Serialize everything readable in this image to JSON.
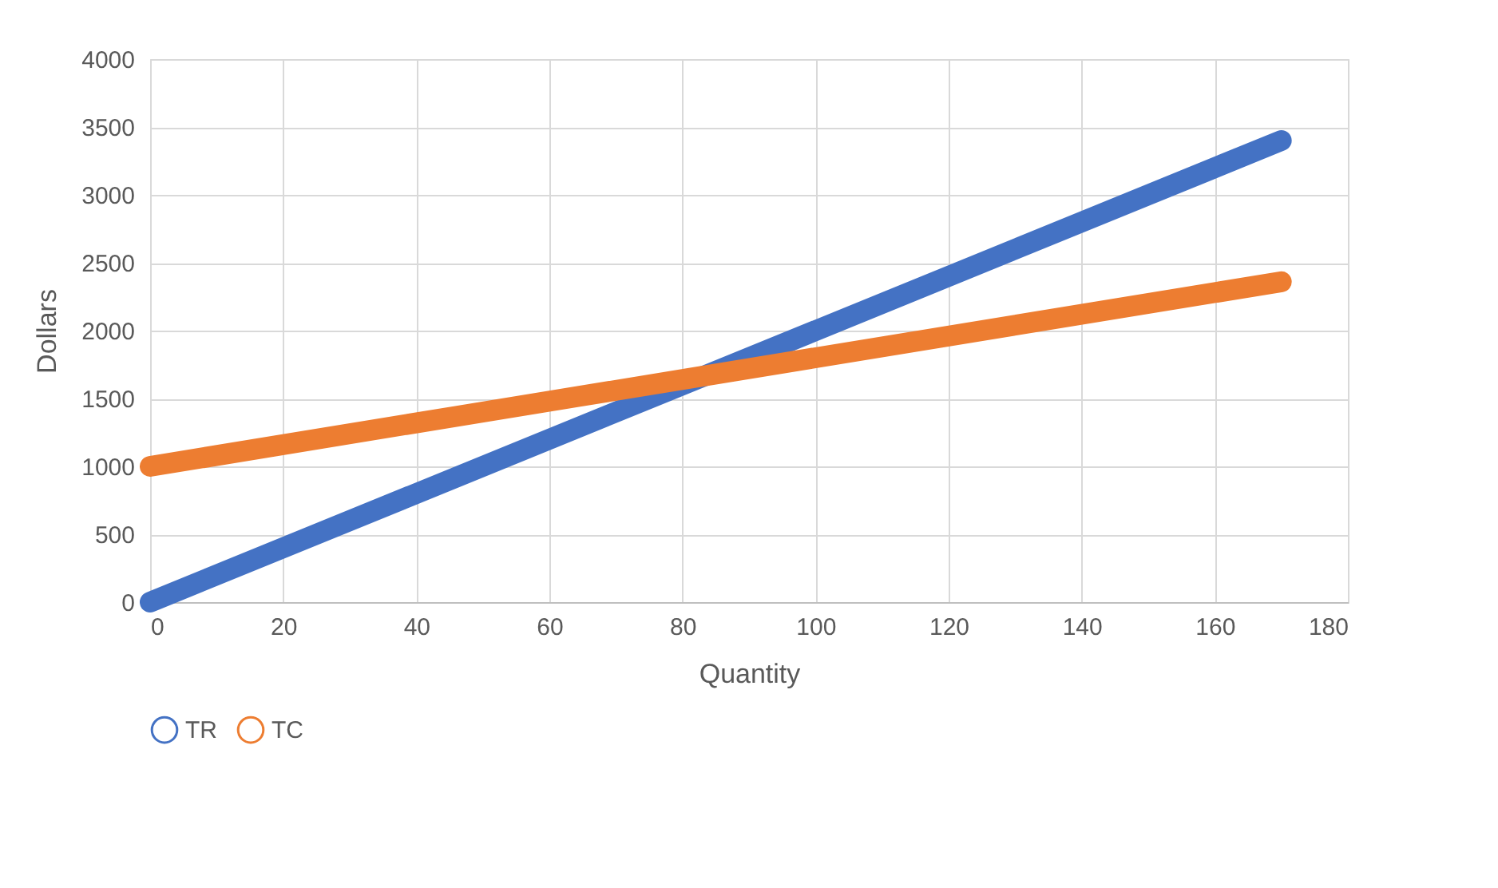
{
  "chart_data": {
    "type": "line",
    "xlabel": "Quantity",
    "ylabel": "Dollars",
    "xlim": [
      0,
      180
    ],
    "xticks": [
      0,
      20,
      40,
      60,
      80,
      100,
      120,
      140,
      160,
      180
    ],
    "ylim": [
      0,
      4000
    ],
    "yticks": [
      0,
      500,
      1000,
      1500,
      2000,
      2500,
      3000,
      3500,
      4000
    ],
    "grid": true,
    "legend": "bottom",
    "marker": "none",
    "line_style": "solid",
    "x": [
      0,
      170
    ],
    "series": [
      {
        "name": "TR",
        "color": "#4472c4",
        "values": [
          0,
          3400
        ]
      },
      {
        "name": "TC",
        "color": "#ed7d31",
        "values": [
          1000,
          2360
        ]
      }
    ]
  }
}
